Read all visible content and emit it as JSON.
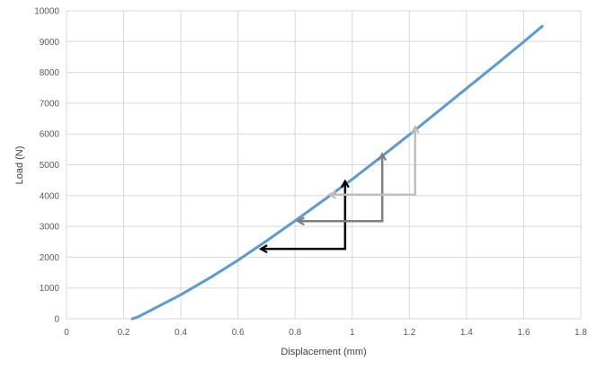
{
  "chart_data": {
    "type": "line",
    "title": "",
    "xlabel": "Displacement (mm)",
    "ylabel": "Load (N)",
    "xlim": [
      0,
      1.8
    ],
    "ylim": [
      0,
      10000
    ],
    "x_ticks": [
      0,
      0.2,
      0.4,
      0.6,
      0.8,
      1,
      1.2,
      1.4,
      1.6,
      1.8
    ],
    "x_tick_labels": [
      "0",
      "0.2",
      "0.4",
      "0.6",
      "0.8",
      "1",
      "1.2",
      "1.4",
      "1.6",
      "1.8"
    ],
    "y_ticks": [
      0,
      1000,
      2000,
      3000,
      4000,
      5000,
      6000,
      7000,
      8000,
      9000,
      10000
    ],
    "y_tick_labels": [
      "0",
      "1000",
      "2000",
      "3000",
      "4000",
      "5000",
      "6000",
      "7000",
      "8000",
      "9000",
      "10000"
    ],
    "grid": true,
    "legend": "none",
    "series": [
      {
        "color": "#5b9bd5",
        "x": [
          0.23,
          0.25,
          0.3,
          0.4,
          0.5,
          0.6,
          0.7,
          0.8,
          0.9,
          1.0,
          1.1,
          1.2,
          1.3,
          1.4,
          1.5,
          1.6,
          1.665
        ],
        "y": [
          0,
          60,
          300,
          780,
          1320,
          1900,
          2530,
          3180,
          3850,
          4530,
          5250,
          5980,
          6730,
          7480,
          8230,
          8990,
          9500
        ]
      }
    ],
    "annotations": [
      {
        "type": "unload-reload-loop",
        "color": "#000000",
        "points": [
          [
            0.68,
            2270
          ],
          [
            0.975,
            2270
          ],
          [
            0.975,
            4470
          ]
        ],
        "arrow_ends": [
          [
            0.68,
            2270
          ],
          [
            0.975,
            4470
          ]
        ]
      },
      {
        "type": "unload-reload-loop",
        "color": "#7f7f7f",
        "points": [
          [
            0.81,
            3170
          ],
          [
            1.105,
            3170
          ],
          [
            1.105,
            5350
          ]
        ],
        "arrow_ends": [
          [
            0.81,
            3170
          ],
          [
            1.105,
            5350
          ]
        ]
      },
      {
        "type": "unload-reload-loop",
        "color": "#bfbfbf",
        "points": [
          [
            0.92,
            4030
          ],
          [
            1.22,
            4030
          ],
          [
            1.22,
            6230
          ]
        ],
        "arrow_ends": [
          [
            0.92,
            4030
          ],
          [
            1.22,
            6230
          ]
        ]
      }
    ]
  }
}
